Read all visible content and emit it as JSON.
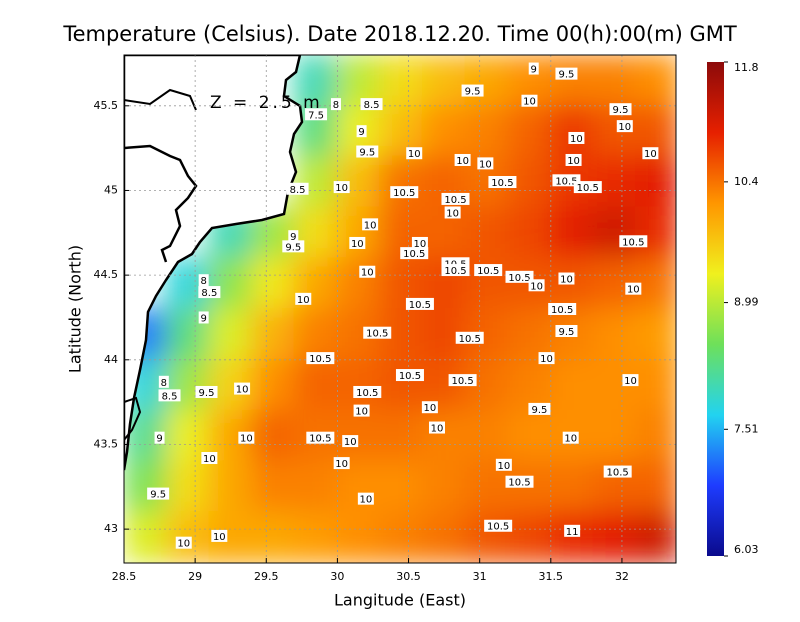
{
  "chart_data": {
    "type": "contour_map",
    "title": "Temperature (Celsius). Date 2018.12.20. Time 00(h):00(m) GMT",
    "xlabel": "Langitude (East)",
    "ylabel": "Latitude (North)",
    "annotation": "Z = 2.5 m",
    "xlim": [
      28.5,
      32.38
    ],
    "ylim": [
      42.8,
      45.8
    ],
    "xticks": [
      28.5,
      29,
      29.5,
      30,
      30.5,
      31,
      31.5,
      32
    ],
    "yticks": [
      43,
      43.5,
      44,
      44.5,
      45,
      45.5
    ],
    "grid": true,
    "colorbar": {
      "lim": [
        6.03,
        11.8
      ],
      "ticks": [
        6.03,
        7.51,
        8.99,
        10.4,
        11.8
      ],
      "colormap": [
        "#0a0a8c",
        "#1e3cff",
        "#22d3f0",
        "#6ee05a",
        "#f0f01e",
        "#ff9600",
        "#e62000",
        "#8c0a0a"
      ]
    },
    "grid_data": {
      "lon": [
        28.65,
        28.95,
        29.25,
        29.55,
        29.85,
        30.15,
        30.45,
        30.75,
        31.05,
        31.35,
        31.65,
        31.95,
        32.25
      ],
      "lat": [
        45.65,
        45.35,
        45.05,
        44.75,
        44.45,
        44.15,
        43.85,
        43.55,
        43.25,
        42.95
      ],
      "values": [
        [
          null,
          null,
          null,
          null,
          8.0,
          9.0,
          9.5,
          9.8,
          10.0,
          10.2,
          10.3,
          10.3,
          10.2
        ],
        [
          null,
          null,
          null,
          null,
          8.3,
          9.3,
          9.8,
          10.2,
          10.3,
          10.5,
          10.8,
          10.6,
          10.6
        ],
        [
          null,
          null,
          null,
          null,
          9.0,
          9.8,
          10.4,
          10.5,
          10.4,
          10.6,
          10.8,
          10.9,
          11.0
        ],
        [
          null,
          null,
          8.0,
          8.8,
          9.5,
          10.0,
          10.5,
          10.5,
          10.6,
          10.7,
          11.0,
          11.2,
          10.9
        ],
        [
          null,
          7.8,
          8.7,
          9.4,
          10.0,
          10.3,
          10.6,
          10.7,
          10.6,
          10.6,
          10.6,
          10.5,
          10.4
        ],
        [
          7.2,
          8.3,
          9.2,
          9.9,
          10.3,
          10.4,
          10.6,
          10.7,
          10.5,
          10.4,
          10.3,
          10.2,
          10.1
        ],
        [
          7.8,
          8.8,
          9.6,
          10.2,
          10.5,
          10.5,
          10.6,
          10.6,
          10.4,
          10.3,
          10.2,
          10.2,
          10.2
        ],
        [
          8.2,
          9.3,
          10.0,
          10.5,
          10.4,
          10.4,
          10.4,
          10.3,
          10.3,
          10.2,
          10.2,
          10.2,
          10.3
        ],
        [
          8.6,
          9.5,
          10.0,
          10.3,
          10.3,
          10.2,
          10.2,
          10.3,
          10.4,
          10.4,
          10.4,
          10.5,
          10.5
        ],
        [
          9.2,
          9.8,
          10.0,
          10.0,
          10.1,
          10.2,
          10.3,
          10.4,
          10.6,
          10.7,
          10.9,
          11.0,
          11.2
        ]
      ]
    },
    "contour_labels": [
      {
        "lon": 31.38,
        "lat": 45.72,
        "level": 9
      },
      {
        "lon": 31.61,
        "lat": 45.69,
        "level": 9.5
      },
      {
        "lon": 30.95,
        "lat": 45.59,
        "level": 9.5
      },
      {
        "lon": 29.99,
        "lat": 45.51,
        "level": 8
      },
      {
        "lon": 30.24,
        "lat": 45.51,
        "level": 8.5
      },
      {
        "lon": 29.85,
        "lat": 45.45,
        "level": 7.5
      },
      {
        "lon": 31.35,
        "lat": 45.53,
        "level": 10
      },
      {
        "lon": 31.99,
        "lat": 45.48,
        "level": 9.5
      },
      {
        "lon": 32.02,
        "lat": 45.38,
        "level": 10
      },
      {
        "lon": 31.68,
        "lat": 45.31,
        "level": 10
      },
      {
        "lon": 30.17,
        "lat": 45.35,
        "level": 9
      },
      {
        "lon": 30.21,
        "lat": 45.23,
        "level": 9.5
      },
      {
        "lon": 30.54,
        "lat": 45.22,
        "level": 10
      },
      {
        "lon": 30.88,
        "lat": 45.18,
        "level": 10
      },
      {
        "lon": 31.04,
        "lat": 45.16,
        "level": 10
      },
      {
        "lon": 31.66,
        "lat": 45.18,
        "level": 10
      },
      {
        "lon": 32.2,
        "lat": 45.22,
        "level": 10
      },
      {
        "lon": 31.16,
        "lat": 45.05,
        "level": 10.5
      },
      {
        "lon": 31.61,
        "lat": 45.06,
        "level": 10.5
      },
      {
        "lon": 31.76,
        "lat": 45.02,
        "level": 10.5
      },
      {
        "lon": 29.72,
        "lat": 45.01,
        "level": 8.5
      },
      {
        "lon": 30.03,
        "lat": 45.02,
        "level": 10
      },
      {
        "lon": 30.47,
        "lat": 44.99,
        "level": 10.5
      },
      {
        "lon": 30.83,
        "lat": 44.95,
        "level": 10.5
      },
      {
        "lon": 30.81,
        "lat": 44.87,
        "level": 10
      },
      {
        "lon": 30.23,
        "lat": 44.8,
        "level": 10
      },
      {
        "lon": 29.69,
        "lat": 44.73,
        "level": 9
      },
      {
        "lon": 29.69,
        "lat": 44.67,
        "level": 9.5
      },
      {
        "lon": 30.14,
        "lat": 44.69,
        "level": 10
      },
      {
        "lon": 30.58,
        "lat": 44.69,
        "level": 10
      },
      {
        "lon": 30.54,
        "lat": 44.63,
        "level": 10.5
      },
      {
        "lon": 32.08,
        "lat": 44.7,
        "level": 10.5
      },
      {
        "lon": 30.83,
        "lat": 44.57,
        "level": 10.5
      },
      {
        "lon": 30.83,
        "lat": 44.53,
        "level": 10.5
      },
      {
        "lon": 31.06,
        "lat": 44.53,
        "level": 10.5
      },
      {
        "lon": 31.28,
        "lat": 44.49,
        "level": 10.5
      },
      {
        "lon": 31.61,
        "lat": 44.48,
        "level": 10
      },
      {
        "lon": 30.21,
        "lat": 44.52,
        "level": 10
      },
      {
        "lon": 29.06,
        "lat": 44.47,
        "level": 8
      },
      {
        "lon": 29.1,
        "lat": 44.4,
        "level": 8.5
      },
      {
        "lon": 32.08,
        "lat": 44.42,
        "level": 10
      },
      {
        "lon": 29.76,
        "lat": 44.36,
        "level": 10
      },
      {
        "lon": 31.4,
        "lat": 44.44,
        "level": 10
      },
      {
        "lon": 30.58,
        "lat": 44.33,
        "level": 10.5
      },
      {
        "lon": 31.58,
        "lat": 44.3,
        "level": 10.5
      },
      {
        "lon": 29.06,
        "lat": 44.25,
        "level": 9
      },
      {
        "lon": 31.61,
        "lat": 44.17,
        "level": 9.5
      },
      {
        "lon": 30.28,
        "lat": 44.16,
        "level": 10.5
      },
      {
        "lon": 30.93,
        "lat": 44.13,
        "level": 10.5
      },
      {
        "lon": 29.88,
        "lat": 44.01,
        "level": 10.5
      },
      {
        "lon": 31.47,
        "lat": 44.01,
        "level": 10
      },
      {
        "lon": 28.78,
        "lat": 43.87,
        "level": 8
      },
      {
        "lon": 28.82,
        "lat": 43.79,
        "level": 8.5
      },
      {
        "lon": 29.08,
        "lat": 43.81,
        "level": 9.5
      },
      {
        "lon": 29.33,
        "lat": 43.83,
        "level": 10
      },
      {
        "lon": 30.51,
        "lat": 43.91,
        "level": 10.5
      },
      {
        "lon": 30.88,
        "lat": 43.88,
        "level": 10.5
      },
      {
        "lon": 30.21,
        "lat": 43.81,
        "level": 10.5
      },
      {
        "lon": 32.06,
        "lat": 43.88,
        "level": 10
      },
      {
        "lon": 30.17,
        "lat": 43.7,
        "level": 10
      },
      {
        "lon": 30.65,
        "lat": 43.72,
        "level": 10
      },
      {
        "lon": 31.42,
        "lat": 43.71,
        "level": 9.5
      },
      {
        "lon": 30.7,
        "lat": 43.6,
        "level": 10
      },
      {
        "lon": 28.75,
        "lat": 43.54,
        "level": 9
      },
      {
        "lon": 29.36,
        "lat": 43.54,
        "level": 10
      },
      {
        "lon": 29.88,
        "lat": 43.54,
        "level": 10.5
      },
      {
        "lon": 30.09,
        "lat": 43.52,
        "level": 10
      },
      {
        "lon": 31.64,
        "lat": 43.54,
        "level": 10
      },
      {
        "lon": 30.03,
        "lat": 43.39,
        "level": 10
      },
      {
        "lon": 31.17,
        "lat": 43.38,
        "level": 10
      },
      {
        "lon": 31.97,
        "lat": 43.34,
        "level": 10.5
      },
      {
        "lon": 31.28,
        "lat": 43.28,
        "level": 10.5
      },
      {
        "lon": 29.1,
        "lat": 43.42,
        "level": 10
      },
      {
        "lon": 28.74,
        "lat": 43.21,
        "level": 9.5
      },
      {
        "lon": 30.2,
        "lat": 43.18,
        "level": 10
      },
      {
        "lon": 31.13,
        "lat": 43.02,
        "level": 10.5
      },
      {
        "lon": 31.65,
        "lat": 42.99,
        "level": 11
      },
      {
        "lon": 28.92,
        "lat": 42.92,
        "level": 10
      },
      {
        "lon": 29.17,
        "lat": 42.96,
        "level": 10
      }
    ]
  }
}
